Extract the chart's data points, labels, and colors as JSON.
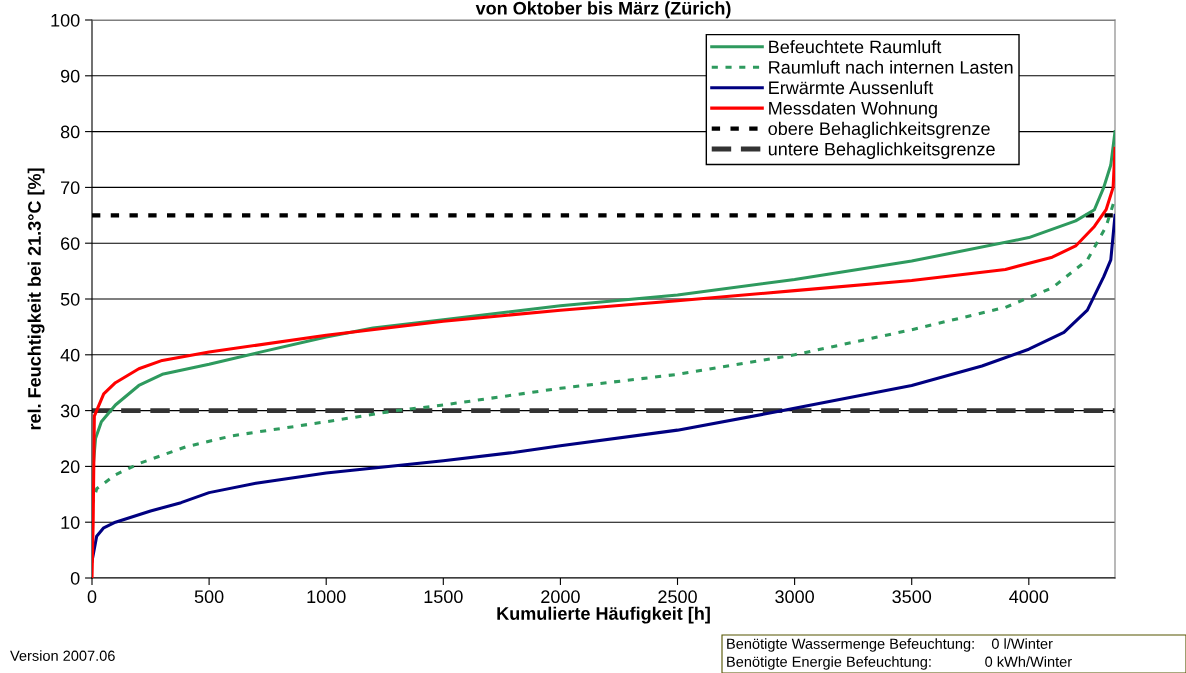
{
  "chart_data": {
    "type": "line",
    "title": "von Oktober bis März (Zürich)",
    "xlabel": "Kumulierte Häufigkeit [h]",
    "ylabel": "rel. Feuchtigkeit bei 21.3°C [%]",
    "xlim": [
      0,
      4368
    ],
    "xticks": [
      0,
      500,
      1000,
      1500,
      2000,
      2500,
      3000,
      3500,
      4000
    ],
    "ylim": [
      0,
      100
    ],
    "yticks": [
      0,
      10,
      20,
      30,
      40,
      50,
      60,
      70,
      80,
      90,
      100
    ],
    "grid": "y",
    "legend": "top right",
    "marker": "none",
    "series": [
      {
        "name": "Befeuchtete Raumluft",
        "color": "#2e9a5e",
        "line_style": "solid",
        "x": [
          0,
          5,
          15,
          40,
          100,
          200,
          300,
          500,
          700,
          1000,
          1200,
          1500,
          2000,
          2500,
          3000,
          3500,
          4000,
          4200,
          4280,
          4320,
          4350,
          4368
        ],
        "values": [
          15,
          20,
          25,
          28,
          31,
          34.5,
          36.5,
          38.3,
          40.3,
          43.2,
          44.8,
          46.3,
          48.8,
          50.7,
          53.5,
          56.8,
          61,
          64,
          66,
          70,
          74,
          80
        ]
      },
      {
        "name": "Raumluft nach internen Lasten",
        "color": "#2e9a5e",
        "line_style": "dotted",
        "x": [
          0,
          20,
          100,
          200,
          400,
          600,
          1000,
          1300,
          1500,
          2000,
          2500,
          3000,
          3500,
          3900,
          4100,
          4250,
          4330,
          4368
        ],
        "values": [
          13,
          16,
          18.5,
          20.5,
          23.5,
          25.5,
          28,
          30,
          31,
          34,
          36.5,
          40,
          44.5,
          48.5,
          52,
          57,
          63,
          68
        ]
      },
      {
        "name": "Erwärmte Aussenluft",
        "color": "#000080",
        "line_style": "solid",
        "x": [
          0,
          20,
          50,
          100,
          250,
          380,
          500,
          700,
          1000,
          1500,
          1800,
          2000,
          2500,
          2950,
          3500,
          3800,
          4000,
          4150,
          4250,
          4320,
          4350,
          4368
        ],
        "values": [
          3,
          7.5,
          9,
          10,
          12,
          13.5,
          15.3,
          17,
          18.8,
          21,
          22.5,
          23.7,
          26.5,
          30,
          34.5,
          38,
          41,
          44,
          48,
          54,
          57,
          65
        ]
      },
      {
        "name": "Messdaten Wohnung",
        "color": "#ff0000",
        "line_style": "solid",
        "x": [
          0,
          5,
          10,
          50,
          100,
          200,
          300,
          500,
          1000,
          1500,
          2000,
          2500,
          3000,
          3500,
          3900,
          4100,
          4200,
          4280,
          4330,
          4360,
          4368
        ],
        "values": [
          0,
          10,
          29,
          33,
          35,
          37.5,
          39,
          40.5,
          43.5,
          46,
          48,
          49.7,
          51.5,
          53.3,
          55.3,
          57.5,
          59.5,
          63,
          66,
          70,
          77
        ]
      }
    ],
    "ref_lines": [
      {
        "axis": "y",
        "value": 65,
        "label": "obere Behaglichkeitsgrenze",
        "color": "#000000",
        "line_style": "dotted"
      },
      {
        "axis": "y",
        "value": 30,
        "label": "untere Behaglichkeitsgrenze",
        "color": "#333333",
        "line_style": "dashed"
      }
    ],
    "annotations": [
      "Version 2007.06",
      "Benötigte Wassermenge Befeuchtung:    0 l/Winter",
      "Benötigte Energie Befeuchtung:             0 kWh/Winter"
    ]
  }
}
